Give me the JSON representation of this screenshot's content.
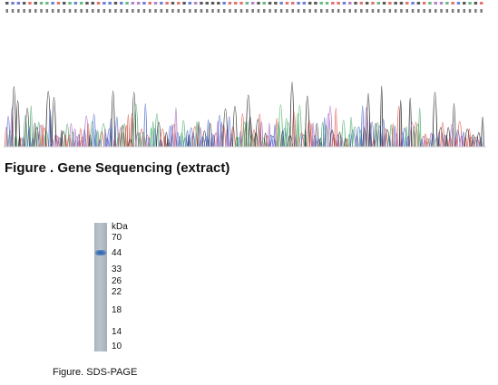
{
  "figure1": {
    "caption": "Figure . Gene Sequencing (extract)",
    "trace_colors": {
      "A": "#3aa35a",
      "C": "#3a57c9",
      "G": "#222222",
      "T": "#d8473c",
      "N": "#9b59b6"
    }
  },
  "figure2": {
    "caption": "Figure. SDS-PAGE",
    "unit_label": "kDa",
    "markers": [
      "70",
      "44",
      "33",
      "26",
      "22",
      "18",
      "14",
      "10"
    ],
    "band_color": "#2a5fa8"
  }
}
